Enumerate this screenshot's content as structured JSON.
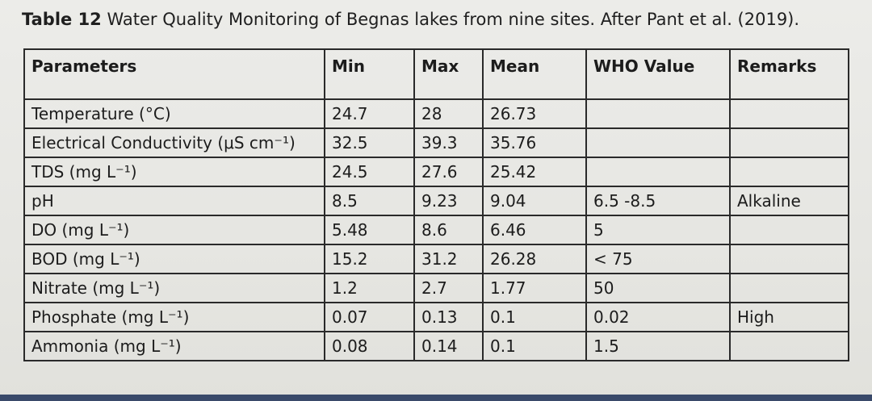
{
  "caption": {
    "label": "Table 12",
    "text": " Water Quality Monitoring of Begnas lakes from nine sites. After Pant et al. (2019)."
  },
  "table": {
    "headers": [
      "Parameters",
      "Min",
      "Max",
      "Mean",
      "WHO Value",
      "Remarks"
    ],
    "rows": [
      [
        "Temperature (°C)",
        "24.7",
        "28",
        "26.73",
        "",
        ""
      ],
      [
        "Electrical Conductivity (μS cm⁻¹)",
        "32.5",
        "39.3",
        "35.76",
        "",
        ""
      ],
      [
        "TDS (mg L⁻¹)",
        "24.5",
        "27.6",
        "25.42",
        "",
        ""
      ],
      [
        "pH",
        "8.5",
        "9.23",
        "9.04",
        "6.5 -8.5",
        "Alkaline"
      ],
      [
        "DO (mg L⁻¹)",
        "5.48",
        "8.6",
        "6.46",
        "5",
        ""
      ],
      [
        "BOD (mg L⁻¹)",
        "15.2",
        "31.2",
        "26.28",
        "< 75",
        ""
      ],
      [
        "Nitrate (mg L⁻¹)",
        "1.2",
        "2.7",
        "1.77",
        "50",
        ""
      ],
      [
        "Phosphate (mg L⁻¹)",
        "0.07",
        "0.13",
        "0.1",
        "0.02",
        "High"
      ],
      [
        "Ammonia (mg L⁻¹)",
        "0.08",
        "0.14",
        "0.1",
        "1.5",
        ""
      ]
    ]
  }
}
